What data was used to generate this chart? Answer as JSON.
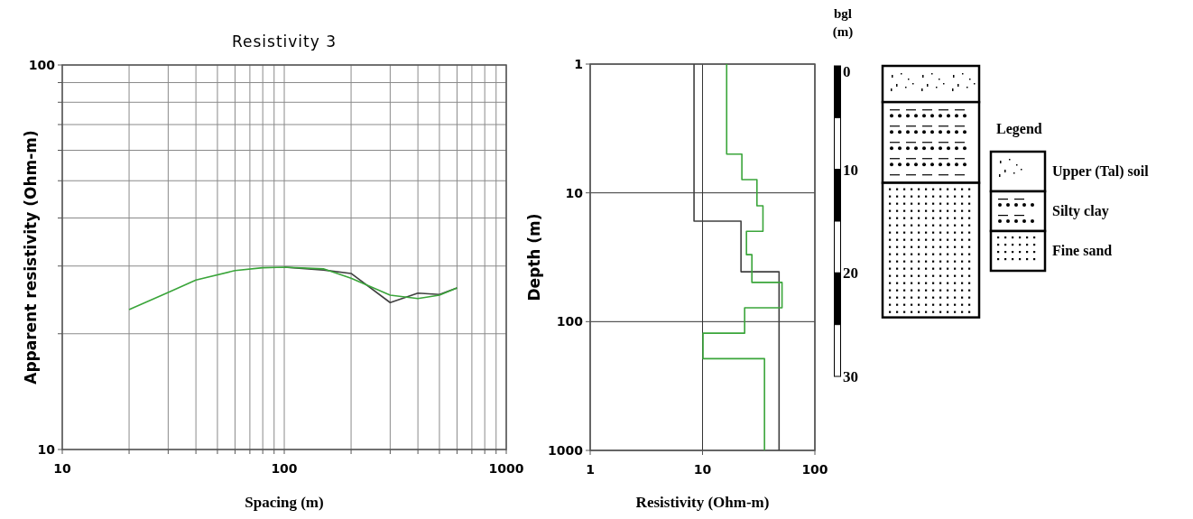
{
  "chart_data": [
    {
      "type": "line",
      "title": "Resistivity 3",
      "xlabel": "Spacing (m)",
      "ylabel": "Apparent resistivity (Ohm-m)",
      "log": "xy",
      "xlim": [
        10,
        1000
      ],
      "ylim": [
        10,
        100
      ],
      "xticks": [
        10,
        {
          "value": 20,
          "label": null
        },
        {
          "value": 30,
          "label": null
        },
        {
          "value": 40,
          "label": null
        },
        {
          "value": 50,
          "label": null
        },
        {
          "value": 60,
          "label": null
        },
        {
          "value": 70,
          "label": null
        },
        {
          "value": 80,
          "label": null
        },
        {
          "value": 90,
          "label": null
        },
        100,
        {
          "value": 200,
          "label": null
        },
        {
          "value": 300,
          "label": null
        },
        {
          "value": 400,
          "label": null
        },
        {
          "value": 500,
          "label": null
        },
        {
          "value": 600,
          "label": null
        },
        {
          "value": 700,
          "label": null
        },
        {
          "value": 800,
          "label": null
        },
        {
          "value": 900,
          "label": null
        },
        1000
      ],
      "yticks": [
        10,
        {
          "value": 20,
          "label": null
        },
        {
          "value": 30,
          "label": null
        },
        {
          "value": 40,
          "label": null
        },
        {
          "value": 50,
          "label": null
        },
        {
          "value": 60,
          "label": null
        },
        {
          "value": 70,
          "label": null
        },
        {
          "value": 80,
          "label": null
        },
        {
          "value": 90,
          "label": null
        },
        100
      ],
      "grid": true,
      "series": [
        {
          "color": "#404040",
          "x": [
            100,
            150,
            200,
            300,
            400,
            500,
            600
          ],
          "values": [
            29.8,
            29.3,
            28.7,
            24.1,
            25.5,
            25.3,
            26.3
          ]
        },
        {
          "color": "#3aa53a",
          "x": [
            20,
            30,
            40,
            60,
            80,
            100,
            150,
            200,
            300,
            400,
            500,
            600
          ],
          "values": [
            23.1,
            25.6,
            27.6,
            29.2,
            29.7,
            29.8,
            29.5,
            27.9,
            25.2,
            24.7,
            25.2,
            26.3
          ]
        }
      ]
    },
    {
      "type": "line",
      "xlabel": "Resistivity (Ohm-m)",
      "ylabel": "Depth (m)",
      "log": "xy",
      "xlim": [
        1,
        100
      ],
      "ylim": [
        1000,
        1
      ],
      "xticks": [
        1,
        10,
        100
      ],
      "yticks": [
        1,
        10,
        100,
        1000
      ],
      "grid": true,
      "series": [
        {
          "color": "#404040",
          "x": [
            8.4,
            8.4,
            22,
            22,
            48,
            48
          ],
          "values": [
            1,
            16.6,
            16.6,
            41,
            41,
            1000
          ]
        },
        {
          "color": "#3aa53a",
          "x": [
            16.4,
            16.4,
            22.4,
            22.4,
            30.5,
            30.5,
            34.5,
            34.5,
            24.6,
            24.6,
            27.5,
            27.5,
            51,
            51,
            23.7,
            23.7,
            10.1,
            10.1,
            35.6,
            35.6
          ],
          "values": [
            1,
            5,
            5,
            7.9,
            7.9,
            12.6,
            12.6,
            19.9,
            19.9,
            30.2,
            30.2,
            49.6,
            49.6,
            78,
            78,
            123,
            123,
            194,
            194,
            1000
          ]
        }
      ]
    },
    {
      "type": "bar",
      "stacked": true,
      "categories": [
        null
      ],
      "ylabel": "bgl (m)",
      "ylim": [
        30,
        0
      ],
      "yticks": [
        0,
        10,
        20,
        30
      ],
      "legend": "right",
      "legend_title": "Legend",
      "series": [
        {
          "name": "Upper (Tal) soil",
          "color": "#ffffff",
          "values": [
            3.5
          ]
        },
        {
          "name": "Silty clay",
          "color": "#ffffff",
          "values": [
            7.8
          ]
        },
        {
          "name": "Fine sand",
          "color": "#ffffff",
          "values": [
            13
          ]
        }
      ]
    }
  ]
}
